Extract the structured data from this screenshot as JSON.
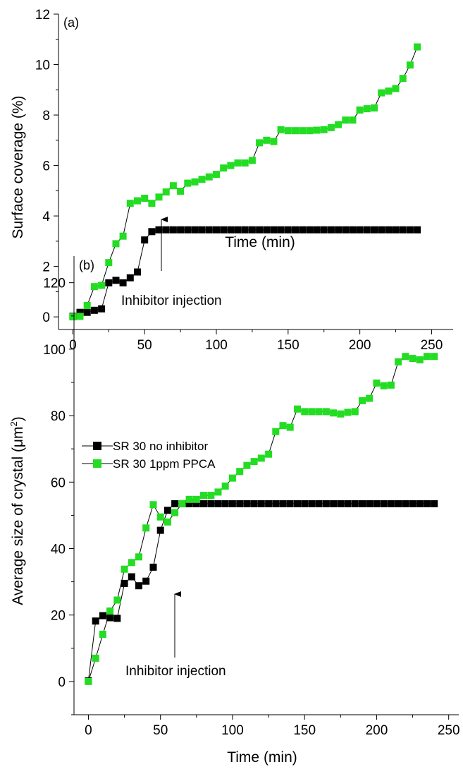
{
  "chart_data": [
    {
      "type": "scatter",
      "panel_label": "(a)",
      "xlabel": "Time (min)",
      "ylabel": "Surface coverage (%)",
      "xlim": [
        -10,
        265
      ],
      "ylim": [
        -0.5,
        12
      ],
      "xticks": [
        0,
        50,
        100,
        150,
        200,
        250
      ],
      "yticks": [
        0,
        2,
        4,
        6,
        8,
        10,
        12
      ],
      "x_tick_labels": [
        "0",
        "50",
        "100",
        "150",
        "200",
        "250"
      ],
      "y_tick_labels": [
        "0",
        "2",
        "4",
        "6",
        "8",
        "10",
        "12"
      ],
      "grid": false,
      "connected_lines": true,
      "annotation": {
        "text": "Inhibitor injection",
        "x": 61,
        "y": 3.45
      },
      "series": [
        {
          "color": "#000000",
          "x": [
            0,
            5,
            10,
            15,
            20,
            25,
            30,
            35,
            40,
            45,
            50,
            55,
            60,
            65,
            70,
            75,
            80,
            85,
            90,
            95,
            100,
            105,
            110,
            115,
            120,
            125,
            130,
            135,
            140,
            145,
            150,
            155,
            160,
            165,
            170,
            175,
            180,
            185,
            190,
            195,
            200,
            205,
            210,
            215,
            220,
            225,
            230,
            235,
            240
          ],
          "y": [
            0.02,
            0.18,
            0.18,
            0.26,
            0.32,
            1.35,
            1.45,
            1.35,
            1.55,
            1.78,
            3.05,
            3.38,
            3.45,
            3.45,
            3.45,
            3.45,
            3.45,
            3.45,
            3.45,
            3.45,
            3.45,
            3.45,
            3.45,
            3.45,
            3.45,
            3.45,
            3.45,
            3.45,
            3.45,
            3.45,
            3.45,
            3.45,
            3.45,
            3.45,
            3.45,
            3.45,
            3.45,
            3.45,
            3.45,
            3.45,
            3.45,
            3.45,
            3.45,
            3.45,
            3.45,
            3.45,
            3.45,
            3.45,
            3.45
          ]
        },
        {
          "color": "#22dd22",
          "x": [
            0,
            5,
            10,
            15,
            20,
            25,
            30,
            35,
            40,
            45,
            50,
            55,
            60,
            65,
            70,
            75,
            80,
            85,
            90,
            95,
            100,
            105,
            110,
            115,
            120,
            125,
            130,
            135,
            140,
            145,
            150,
            155,
            160,
            165,
            170,
            175,
            180,
            185,
            190,
            195,
            200,
            205,
            210,
            215,
            220,
            225,
            230,
            235,
            240
          ],
          "y": [
            0.0,
            0.02,
            0.45,
            1.2,
            1.25,
            2.15,
            2.9,
            3.2,
            4.5,
            4.6,
            4.7,
            4.5,
            4.75,
            4.95,
            5.2,
            4.98,
            5.3,
            5.35,
            5.45,
            5.55,
            5.65,
            5.9,
            6.0,
            6.1,
            6.1,
            6.2,
            6.9,
            7.0,
            6.95,
            7.42,
            7.38,
            7.38,
            7.38,
            7.38,
            7.4,
            7.42,
            7.5,
            7.62,
            7.8,
            7.8,
            8.2,
            8.25,
            8.28,
            8.88,
            8.95,
            9.05,
            9.45,
            9.98,
            10.7
          ]
        }
      ]
    },
    {
      "type": "scatter",
      "panel_label": "(b)",
      "xlabel": "Time (min)",
      "ylabel": "Average size of crystal (μm²)",
      "ylabel_main": "Average size of crystal (",
      "ylabel_unit": "μm",
      "ylabel_exponent": "2",
      "ylabel_close": ")",
      "xlim": [
        -10,
        257
      ],
      "ylim": [
        -10,
        128
      ],
      "xticks": [
        0,
        50,
        100,
        150,
        200,
        250
      ],
      "yticks": [
        0,
        20,
        40,
        60,
        80,
        100,
        120
      ],
      "x_tick_labels": [
        "0",
        "50",
        "100",
        "150",
        "200",
        "250"
      ],
      "y_tick_labels": [
        "0",
        "20",
        "40",
        "60",
        "80",
        "100",
        "120"
      ],
      "grid": false,
      "connected_lines": true,
      "legend_placement": "upper-left",
      "annotation": {
        "text": "Inhibitor injection",
        "x": 60,
        "y": 53
      },
      "series": [
        {
          "name": "SR 30 no inhibitor",
          "color": "#000000",
          "x": [
            0,
            5,
            10,
            15,
            20,
            25,
            30,
            35,
            40,
            45,
            50,
            55,
            60,
            65,
            70,
            75,
            80,
            85,
            90,
            95,
            100,
            105,
            110,
            115,
            120,
            125,
            130,
            135,
            140,
            145,
            150,
            155,
            160,
            165,
            170,
            175,
            180,
            185,
            190,
            195,
            200,
            205,
            210,
            215,
            220,
            225,
            230,
            235,
            240
          ],
          "y": [
            0.2,
            18.2,
            19.8,
            19.2,
            19.0,
            29.5,
            31.5,
            28.8,
            30.2,
            34.4,
            45.5,
            51.5,
            53.5,
            53.5,
            53.5,
            53.5,
            53.5,
            53.5,
            53.5,
            53.5,
            53.5,
            53.5,
            53.5,
            53.5,
            53.5,
            53.5,
            53.5,
            53.5,
            53.5,
            53.5,
            53.5,
            53.5,
            53.5,
            53.5,
            53.5,
            53.5,
            53.5,
            53.5,
            53.5,
            53.5,
            53.5,
            53.5,
            53.5,
            53.5,
            53.5,
            53.5,
            53.5,
            53.5,
            53.5
          ]
        },
        {
          "name": "SR 30 1ppm PPCA",
          "color": "#22dd22",
          "x": [
            0,
            5,
            10,
            15,
            20,
            25,
            30,
            35,
            40,
            45,
            50,
            55,
            60,
            65,
            70,
            75,
            80,
            85,
            90,
            95,
            100,
            105,
            110,
            115,
            120,
            125,
            130,
            135,
            140,
            145,
            150,
            155,
            160,
            165,
            170,
            175,
            180,
            185,
            190,
            195,
            200,
            205,
            210,
            215,
            220,
            225,
            230,
            235,
            240
          ],
          "y": [
            0.0,
            7.0,
            14.2,
            21.2,
            24.5,
            33.8,
            35.8,
            37.5,
            46.2,
            53.2,
            49.5,
            48.0,
            50.8,
            53.5,
            54.8,
            54.8,
            56.0,
            56.0,
            57.0,
            58.8,
            61.2,
            63.2,
            65.0,
            66.2,
            67.2,
            68.4,
            75.2,
            77.0,
            76.5,
            82.0,
            81.2,
            81.2,
            81.2,
            81.2,
            80.8,
            80.5,
            81.0,
            81.2,
            84.5,
            85.2,
            89.8,
            89.0,
            89.2,
            96.2,
            97.8,
            97.2,
            96.8,
            97.8,
            97.8
          ]
        }
      ]
    }
  ]
}
